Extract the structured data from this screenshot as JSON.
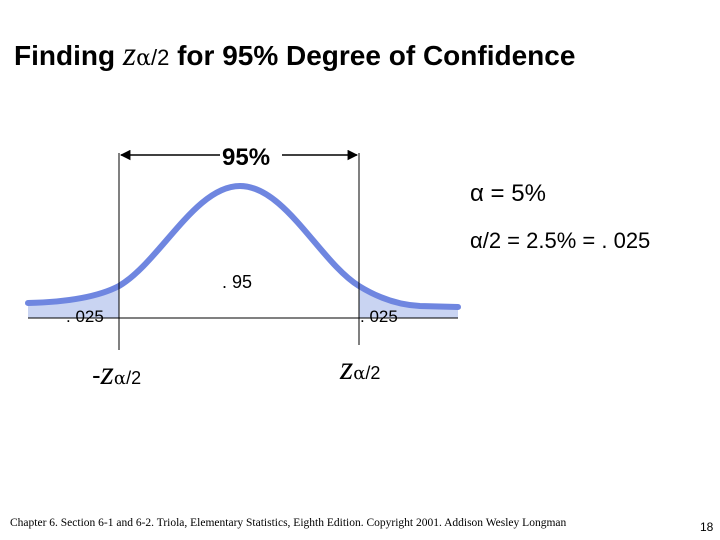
{
  "title": {
    "prefix": "Finding ",
    "z": "z",
    "alpha": "α",
    "sub": "/2",
    "suffix": " for 95% Degree of Confidence"
  },
  "labels": {
    "percent_95": "95%",
    "alpha_eq": "α = 5%",
    "alpha_half": "α/2 = 2.5% = . 025",
    "center_area": ". 95",
    "left_tail": ". 025",
    "right_tail": ". 025",
    "z_left_minus": "-",
    "z_left_z": "z",
    "z_left_alpha": "α",
    "z_left_sub": "/2",
    "z_right_z": "z",
    "z_right_alpha": "α",
    "z_right_sub": "/2"
  },
  "footer": {
    "citation": "Chapter 6. Section 6-1 and 6-2. Triola, Elementary Statistics, Eighth Edition. Copyright 2001. Addison Wesley Longman",
    "page_number": "18"
  },
  "colors": {
    "curve": "#6f86e0",
    "tail_fill": "#c9d4f2",
    "lines": "#000000"
  },
  "icons": [
    "arrow-left-icon",
    "arrow-right-icon"
  ]
}
